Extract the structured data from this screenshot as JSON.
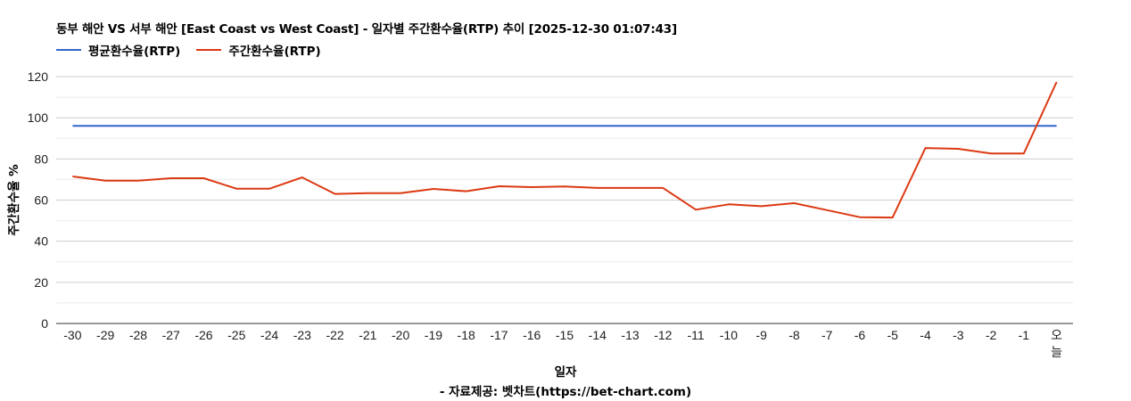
{
  "chart_data": {
    "type": "line",
    "title": "동부 해안 VS 서부 해안 [East Coast vs West Coast] - 일자별 주간환수율(RTP) 추이 [2025-12-30 01:07:43]",
    "xlabel": "일자",
    "ylabel": "주간환수율 %",
    "source": "- 자료제공: 벳차트(https://bet-chart.com)",
    "ylim": [
      0,
      120
    ],
    "yticks": [
      0,
      20,
      40,
      60,
      80,
      100,
      120
    ],
    "grid": true,
    "minor_grid": true,
    "legend_position": "top-left",
    "categories": [
      "-30",
      "-29",
      "-28",
      "-27",
      "-26",
      "-25",
      "-24",
      "-23",
      "-22",
      "-21",
      "-20",
      "-19",
      "-18",
      "-17",
      "-16",
      "-15",
      "-14",
      "-13",
      "-12",
      "-11",
      "-10",
      "-9",
      "-8",
      "-7",
      "-6",
      "-5",
      "-4",
      "-3",
      "-2",
      "-1",
      "오늘"
    ],
    "series": [
      {
        "name": "평균환수율(RTP)",
        "color": "#3366cc",
        "values": [
          96.1,
          96.1,
          96.1,
          96.1,
          96.1,
          96.1,
          96.1,
          96.1,
          96.1,
          96.1,
          96.1,
          96.1,
          96.1,
          96.1,
          96.1,
          96.1,
          96.1,
          96.1,
          96.1,
          96.1,
          96.1,
          96.1,
          96.1,
          96.1,
          96.1,
          96.1,
          96.1,
          96.1,
          96.1,
          96.1,
          96.1
        ]
      },
      {
        "name": "주간환수율(RTP)",
        "color": "#dc3912",
        "values": [
          71.5,
          69.4,
          69.4,
          70.6,
          70.6,
          65.5,
          65.5,
          71.0,
          63.0,
          63.4,
          63.4,
          65.4,
          64.3,
          66.7,
          66.3,
          66.6,
          65.9,
          65.9,
          65.9,
          55.3,
          57.9,
          57.0,
          58.5,
          55.1,
          51.7,
          51.5,
          85.3,
          84.9,
          82.6,
          82.6,
          117.4
        ]
      }
    ]
  }
}
